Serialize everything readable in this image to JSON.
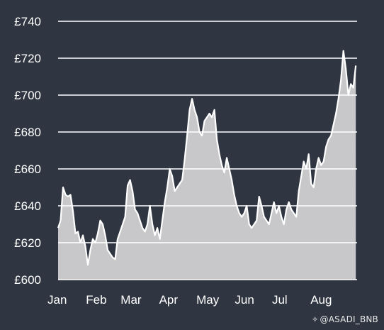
{
  "watermark": {
    "icon": "diamond-logo-icon",
    "text": "@ASADI_BNB"
  },
  "chart_data": {
    "type": "area",
    "title": "",
    "xlabel": "",
    "ylabel": "",
    "ylim": [
      600,
      740
    ],
    "y_ticks": [
      600,
      620,
      640,
      660,
      680,
      700,
      720,
      740
    ],
    "y_tick_labels": [
      "£600",
      "£620",
      "£640",
      "£660",
      "£680",
      "£700",
      "£720",
      "£740"
    ],
    "x_ticks": [
      0,
      31,
      59,
      90,
      120,
      151,
      181,
      212
    ],
    "x_tick_labels": [
      "Jan",
      "Feb",
      "Mar",
      "Apr",
      "May",
      "Jun",
      "Jul",
      "Aug"
    ],
    "xlim": [
      0,
      241
    ],
    "grid": "horizontal",
    "colors": {
      "fill": "#c8c8ca",
      "line": "#ffffff",
      "grid": "#ffffff",
      "background": "#2f3641",
      "text": "#ffffff"
    },
    "series": [
      {
        "x": [
          0,
          2,
          4,
          6,
          8,
          10,
          12,
          14,
          16,
          18,
          20,
          22,
          24,
          26,
          28,
          30,
          32,
          34,
          36,
          38,
          40,
          42,
          44,
          46,
          48,
          50,
          52,
          54,
          56,
          58,
          60,
          62,
          64,
          66,
          68,
          70,
          72,
          74,
          76,
          78,
          80,
          82,
          84,
          86,
          88,
          90,
          92,
          94,
          96,
          98,
          100,
          102,
          104,
          106,
          108,
          110,
          112,
          114,
          116,
          118,
          120,
          122,
          124,
          126,
          128,
          130,
          132,
          134,
          136,
          138,
          140,
          142,
          144,
          146,
          148,
          150,
          152,
          154,
          156,
          158,
          160,
          162,
          164,
          166,
          168,
          170,
          172,
          174,
          176,
          178,
          180,
          182,
          184,
          186,
          188,
          190,
          192,
          194,
          196,
          198,
          200,
          202,
          204,
          206,
          208,
          210,
          212,
          214,
          216,
          218,
          220,
          222,
          224,
          226,
          228,
          230,
          232,
          234,
          236,
          238,
          240
        ],
        "y": [
          628,
          632,
          650,
          646,
          645,
          646,
          637,
          625,
          626,
          620,
          624,
          618,
          608,
          616,
          622,
          620,
          625,
          632,
          630,
          624,
          616,
          614,
          612,
          611,
          622,
          626,
          630,
          634,
          651,
          654,
          648,
          638,
          636,
          632,
          628,
          626,
          630,
          640,
          630,
          624,
          628,
          622,
          632,
          642,
          650,
          660,
          656,
          648,
          650,
          652,
          654,
          665,
          678,
          692,
          698,
          692,
          688,
          680,
          678,
          686,
          688,
          690,
          688,
          692,
          676,
          668,
          662,
          658,
          666,
          660,
          654,
          646,
          640,
          636,
          634,
          636,
          640,
          630,
          628,
          630,
          632,
          645,
          640,
          634,
          632,
          630,
          636,
          642,
          636,
          640,
          634,
          630,
          638,
          642,
          638,
          636,
          634,
          648,
          656,
          664,
          660,
          668,
          652,
          650,
          660,
          666,
          662,
          664,
          672,
          676,
          678,
          684,
          690,
          698,
          708,
          724,
          714,
          700,
          706,
          704,
          716
        ]
      }
    ]
  }
}
